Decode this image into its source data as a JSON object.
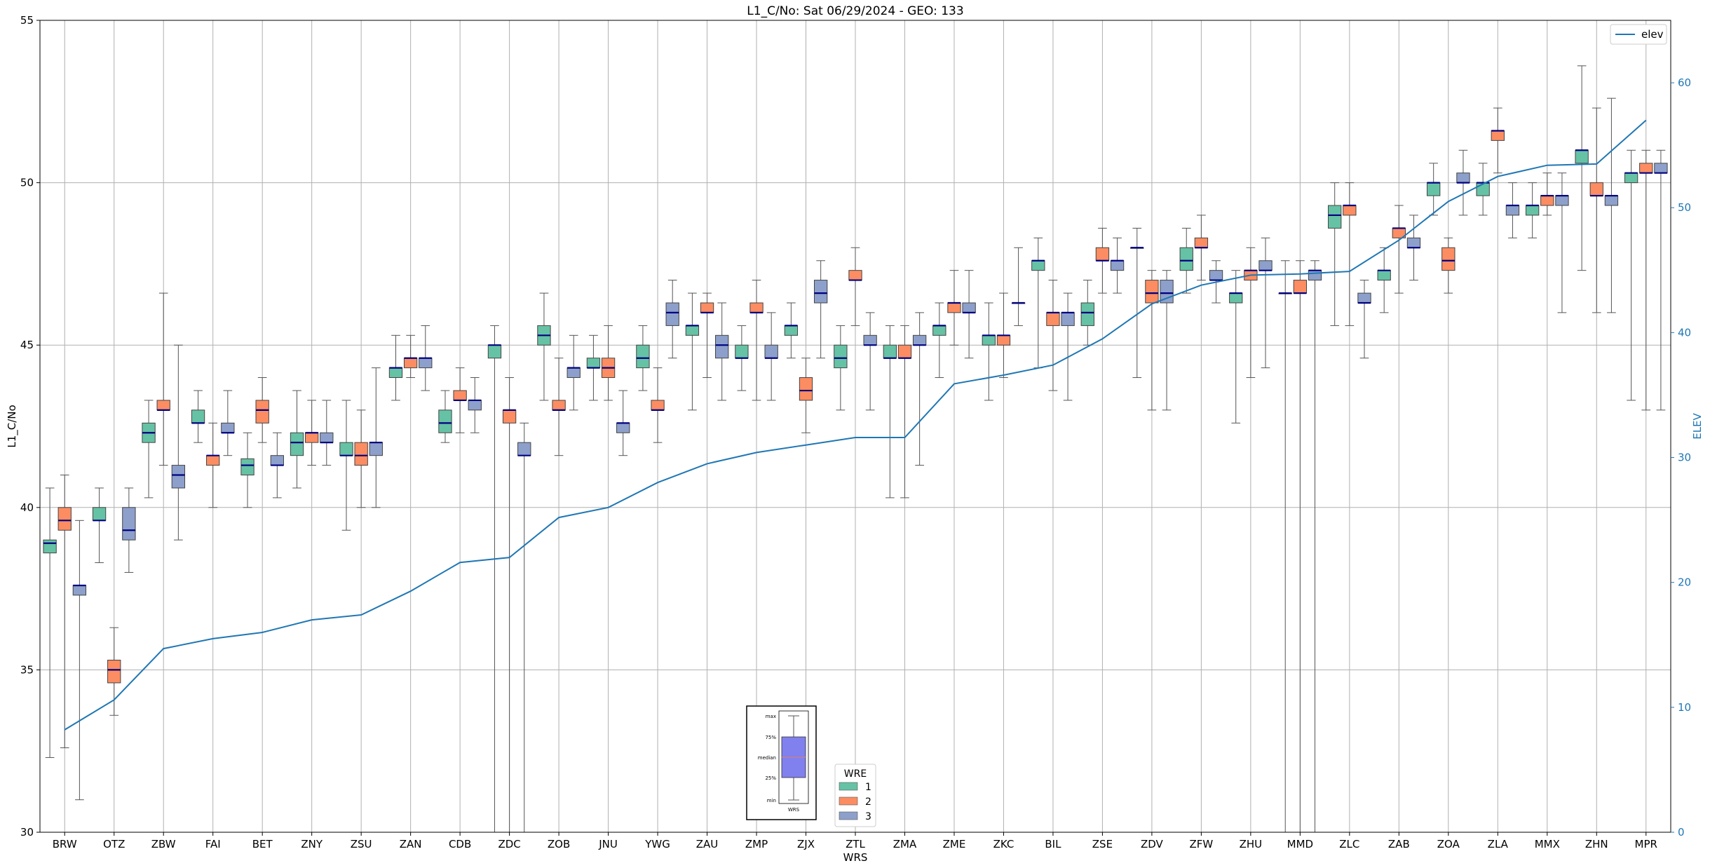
{
  "chart_data": {
    "type": "box",
    "title": "L1_C/No: Sat 06/29/2024 - GEO: 133",
    "xlabel": "WRS",
    "ylabel": "L1_C/No",
    "y2label": "ELEV",
    "ylim": [
      30,
      55
    ],
    "y2lim": [
      0,
      65
    ],
    "yticks": [
      30,
      35,
      40,
      45,
      50,
      55
    ],
    "y2ticks": [
      0,
      10,
      20,
      30,
      40,
      50,
      60
    ],
    "grid": true,
    "categories": [
      "BRW",
      "OTZ",
      "ZBW",
      "FAI",
      "BET",
      "ZNY",
      "ZSU",
      "ZAN",
      "CDB",
      "ZDC",
      "ZOB",
      "JNU",
      "YWG",
      "ZAU",
      "ZMP",
      "ZJX",
      "ZTL",
      "ZMA",
      "ZME",
      "ZKC",
      "BIL",
      "ZSE",
      "ZDV",
      "ZFW",
      "ZHU",
      "MMD",
      "ZLC",
      "ZAB",
      "ZOA",
      "ZLA",
      "MMX",
      "ZHN",
      "MPR"
    ],
    "colors": {
      "1": "#66c2a5",
      "2": "#fc8d62",
      "3": "#8da0cb",
      "elev": "#1f77b4",
      "median": "#000080"
    },
    "wre_legend": {
      "title": "WRE",
      "entries": [
        "1",
        "2",
        "3"
      ]
    },
    "line_legend": {
      "label": "elev"
    },
    "series": [
      {
        "name": "1",
        "boxes": [
          [
            32.3,
            38.6,
            38.9,
            39.0,
            40.6
          ],
          [
            38.3,
            39.6,
            39.6,
            40.0,
            40.6
          ],
          [
            40.3,
            42.0,
            42.3,
            42.6,
            43.3
          ],
          [
            42.0,
            42.6,
            42.6,
            43.0,
            43.6
          ],
          [
            40.0,
            41.0,
            41.3,
            41.5,
            42.3
          ],
          [
            40.6,
            41.6,
            42.0,
            42.3,
            43.6
          ],
          [
            39.3,
            41.6,
            41.6,
            42.0,
            43.3
          ],
          [
            43.3,
            44.0,
            44.3,
            44.3,
            45.3
          ],
          [
            42.0,
            42.3,
            42.6,
            43.0,
            43.6
          ],
          [
            30.0,
            44.6,
            45.0,
            45.0,
            45.6
          ],
          [
            43.3,
            45.0,
            45.3,
            45.6,
            46.6
          ],
          [
            43.3,
            44.3,
            44.3,
            44.6,
            45.3
          ],
          [
            43.6,
            44.3,
            44.6,
            45.0,
            45.6
          ],
          [
            43.0,
            45.3,
            45.6,
            45.6,
            46.6
          ],
          [
            43.6,
            44.6,
            44.6,
            45.0,
            45.6
          ],
          [
            44.6,
            45.3,
            45.6,
            45.6,
            46.3
          ],
          [
            43.0,
            44.3,
            44.6,
            45.0,
            45.6
          ],
          [
            40.3,
            44.6,
            44.6,
            45.0,
            45.6
          ],
          [
            44.0,
            45.3,
            45.6,
            45.6,
            46.3
          ],
          [
            43.3,
            45.0,
            45.3,
            45.3,
            46.3
          ],
          [
            44.3,
            47.3,
            47.6,
            47.6,
            48.3
          ],
          [
            45.0,
            45.6,
            46.0,
            46.3,
            47.0
          ],
          [
            44.0,
            48.0,
            48.0,
            48.0,
            48.6
          ],
          [
            46.6,
            47.3,
            47.6,
            48.0,
            48.6
          ],
          [
            42.6,
            46.3,
            46.6,
            46.6,
            47.3
          ],
          [
            30.0,
            46.6,
            46.6,
            46.6,
            47.6
          ],
          [
            45.6,
            48.6,
            49.0,
            49.3,
            50.0
          ],
          [
            46.0,
            47.0,
            47.3,
            47.3,
            48.0
          ],
          [
            49.0,
            49.6,
            50.0,
            50.0,
            50.6
          ],
          [
            49.0,
            49.6,
            50.0,
            50.0,
            50.6
          ],
          [
            48.3,
            49.0,
            49.3,
            49.3,
            50.0
          ],
          [
            47.3,
            50.6,
            51.0,
            51.0,
            53.6
          ],
          [
            43.3,
            50.0,
            50.3,
            50.3,
            51.0
          ]
        ]
      },
      {
        "name": "2",
        "boxes": [
          [
            32.6,
            39.3,
            39.6,
            40.0,
            41.0
          ],
          [
            33.6,
            34.6,
            35.0,
            35.3,
            36.3
          ],
          [
            41.3,
            43.0,
            43.0,
            43.3,
            46.6
          ],
          [
            40.0,
            41.3,
            41.6,
            41.6,
            42.6
          ],
          [
            42.0,
            42.6,
            43.0,
            43.3,
            44.0
          ],
          [
            41.3,
            42.0,
            42.3,
            42.3,
            43.3
          ],
          [
            40.0,
            41.3,
            41.6,
            42.0,
            43.0
          ],
          [
            44.0,
            44.3,
            44.6,
            44.6,
            45.3
          ],
          [
            42.3,
            43.3,
            43.3,
            43.6,
            44.3
          ],
          [
            30.0,
            42.6,
            43.0,
            43.0,
            44.0
          ],
          [
            41.6,
            43.0,
            43.0,
            43.3,
            44.6
          ],
          [
            43.3,
            44.0,
            44.3,
            44.6,
            45.6
          ],
          [
            42.0,
            43.0,
            43.0,
            43.3,
            44.3
          ],
          [
            44.0,
            46.0,
            46.0,
            46.3,
            46.6
          ],
          [
            43.3,
            46.0,
            46.0,
            46.3,
            47.0
          ],
          [
            42.3,
            43.3,
            43.6,
            44.0,
            44.6
          ],
          [
            45.6,
            47.0,
            47.0,
            47.3,
            48.0
          ],
          [
            40.3,
            44.6,
            44.6,
            45.0,
            45.6
          ],
          [
            45.0,
            46.0,
            46.3,
            46.3,
            47.3
          ],
          [
            44.0,
            45.0,
            45.3,
            45.3,
            46.6
          ],
          [
            43.6,
            45.6,
            46.0,
            46.0,
            47.0
          ],
          [
            46.6,
            47.6,
            47.6,
            48.0,
            48.6
          ],
          [
            43.0,
            46.3,
            46.6,
            47.0,
            47.3
          ],
          [
            47.0,
            48.0,
            48.0,
            48.3,
            49.0
          ],
          [
            44.0,
            47.0,
            47.3,
            47.3,
            48.0
          ],
          [
            30.0,
            46.6,
            46.6,
            47.0,
            47.6
          ],
          [
            45.6,
            49.0,
            49.3,
            49.3,
            50.0
          ],
          [
            46.6,
            48.3,
            48.6,
            48.6,
            49.3
          ],
          [
            46.6,
            47.3,
            47.6,
            48.0,
            48.3
          ],
          [
            50.3,
            51.3,
            51.6,
            51.6,
            52.3
          ],
          [
            49.0,
            49.3,
            49.6,
            49.6,
            50.3
          ],
          [
            46.0,
            49.6,
            49.6,
            50.0,
            52.3
          ],
          [
            43.0,
            50.3,
            50.3,
            50.6,
            51.0
          ]
        ]
      },
      {
        "name": "3",
        "boxes": [
          [
            31.0,
            37.3,
            37.6,
            37.6,
            39.6
          ],
          [
            38.0,
            39.0,
            39.3,
            40.0,
            40.6
          ],
          [
            39.0,
            40.6,
            41.0,
            41.3,
            45.0
          ],
          [
            41.6,
            42.3,
            42.3,
            42.6,
            43.6
          ],
          [
            40.3,
            41.3,
            41.3,
            41.6,
            42.3
          ],
          [
            41.3,
            42.0,
            42.0,
            42.3,
            43.3
          ],
          [
            40.0,
            41.6,
            42.0,
            42.0,
            44.3
          ],
          [
            43.6,
            44.3,
            44.6,
            44.6,
            45.6
          ],
          [
            42.3,
            43.0,
            43.3,
            43.3,
            44.0
          ],
          [
            30.0,
            41.6,
            41.6,
            42.0,
            42.6
          ],
          [
            43.0,
            44.0,
            44.3,
            44.3,
            45.3
          ],
          [
            41.6,
            42.3,
            42.6,
            42.6,
            43.6
          ],
          [
            44.6,
            45.6,
            46.0,
            46.3,
            47.0
          ],
          [
            43.3,
            44.6,
            45.0,
            45.3,
            46.3
          ],
          [
            43.3,
            44.6,
            44.6,
            45.0,
            46.0
          ],
          [
            44.6,
            46.3,
            46.6,
            47.0,
            47.6
          ],
          [
            43.0,
            45.0,
            45.0,
            45.3,
            46.0
          ],
          [
            41.3,
            45.0,
            45.0,
            45.3,
            46.0
          ],
          [
            44.6,
            46.0,
            46.0,
            46.3,
            47.3
          ],
          [
            45.6,
            46.3,
            46.3,
            46.3,
            48.0
          ],
          [
            43.3,
            45.6,
            46.0,
            46.0,
            46.6
          ],
          [
            46.6,
            47.3,
            47.6,
            47.6,
            48.3
          ],
          [
            43.0,
            46.3,
            46.6,
            47.0,
            47.3
          ],
          [
            46.3,
            47.0,
            47.0,
            47.3,
            47.6
          ],
          [
            44.3,
            47.3,
            47.3,
            47.6,
            48.3
          ],
          [
            30.0,
            47.0,
            47.3,
            47.3,
            47.6
          ],
          [
            44.6,
            46.3,
            46.3,
            46.6,
            47.0
          ],
          [
            47.0,
            48.0,
            48.0,
            48.3,
            49.0
          ],
          [
            49.0,
            50.0,
            50.0,
            50.3,
            51.0
          ],
          [
            48.3,
            49.0,
            49.3,
            49.3,
            50.0
          ],
          [
            46.0,
            49.3,
            49.6,
            49.6,
            50.3
          ],
          [
            46.0,
            49.3,
            49.6,
            49.6,
            52.6
          ],
          [
            43.0,
            50.3,
            50.3,
            50.6,
            51.0
          ]
        ]
      }
    ],
    "elev": [
      8.2,
      10.6,
      14.7,
      15.5,
      16.0,
      17.0,
      17.4,
      19.3,
      21.6,
      22.0,
      25.2,
      26.0,
      28.0,
      29.5,
      30.4,
      31.0,
      31.6,
      31.6,
      35.9,
      36.6,
      37.4,
      39.5,
      42.3,
      43.8,
      44.6,
      44.7,
      44.9,
      47.4,
      50.5,
      52.5,
      53.4,
      53.5,
      57.0
    ],
    "inset": {
      "labels": [
        "max",
        "75%",
        "median",
        "25%",
        "min"
      ],
      "xlabel": "WRS"
    }
  }
}
